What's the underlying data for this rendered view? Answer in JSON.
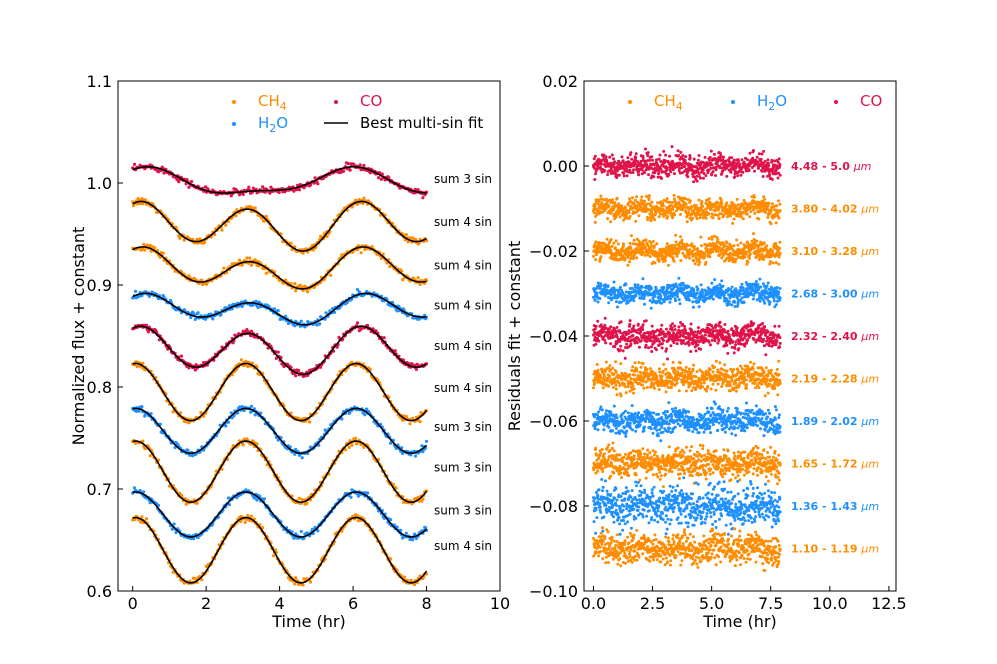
{
  "colors": {
    "ch4": "#ff8c00",
    "h2o": "#1e90ff",
    "co": "#e0134a",
    "fit": "#000000"
  },
  "chart_data": [
    {
      "type": "scatter",
      "title": "",
      "xlabel": "Time (hr)",
      "ylabel": "Normalized flux + constant",
      "xlim": [
        -0.4,
        10
      ],
      "ylim": [
        0.6,
        1.1
      ],
      "xticks": [
        0,
        2,
        4,
        6,
        8,
        10
      ],
      "yticks": [
        0.6,
        0.7,
        0.8,
        0.9,
        1.0,
        1.1
      ],
      "xtick_labels": [
        "0",
        "2",
        "4",
        "6",
        "8",
        "10"
      ],
      "ytick_labels": [
        "0.6",
        "0.7",
        "0.8",
        "0.9",
        "1.0",
        "1.1"
      ],
      "legend": {
        "placement": "top",
        "entries": [
          {
            "label": "CH",
            "sub": "4",
            "kind": "ch4"
          },
          {
            "label": "CO",
            "sub": "",
            "kind": "co"
          },
          {
            "label": "H",
            "sub": "2",
            "tail": "O",
            "kind": "h2o"
          },
          {
            "label": "Best multi-sin fit",
            "sub": "",
            "kind": "fit"
          }
        ]
      },
      "series": [
        {
          "kind": "co",
          "offset": 1.0,
          "label": "sum 3 sin",
          "terms": [
            [
              0.012,
              5.6,
              1.2
            ],
            [
              0.004,
              2.8,
              0.5
            ]
          ]
        },
        {
          "kind": "ch4",
          "offset": 0.958,
          "label": "sum 4 sin",
          "terms": [
            [
              0.02,
              3.0,
              1.2
            ],
            [
              0.006,
              6.0,
              0.5
            ]
          ]
        },
        {
          "kind": "ch4",
          "offset": 0.915,
          "label": "sum 4 sin",
          "terms": [
            [
              0.015,
              3.0,
              1.1
            ],
            [
              0.008,
              6.0,
              0.9
            ]
          ]
        },
        {
          "kind": "h2o",
          "offset": 0.876,
          "label": "sum 4 sin",
          "terms": [
            [
              0.011,
              3.0,
              1.0
            ],
            [
              0.006,
              6.0,
              0.6
            ]
          ]
        },
        {
          "kind": "co",
          "offset": 0.836,
          "label": "sum 4 sin",
          "terms": [
            [
              0.02,
              3.0,
              1.2
            ],
            [
              0.005,
              6.0,
              0.6
            ]
          ]
        },
        {
          "kind": "ch4",
          "offset": 0.795,
          "label": "sum 4 sin",
          "terms": [
            [
              0.028,
              3.0,
              1.4
            ]
          ]
        },
        {
          "kind": "h2o",
          "offset": 0.757,
          "label": "sum 3 sin",
          "terms": [
            [
              0.022,
              3.0,
              1.4
            ]
          ]
        },
        {
          "kind": "ch4",
          "offset": 0.717,
          "label": "sum 3 sin",
          "terms": [
            [
              0.03,
              3.0,
              1.4
            ]
          ]
        },
        {
          "kind": "h2o",
          "offset": 0.675,
          "label": "sum 3 sin",
          "terms": [
            [
              0.022,
              3.0,
              1.4
            ]
          ]
        },
        {
          "kind": "ch4",
          "offset": 0.64,
          "label": "sum 4 sin",
          "terms": [
            [
              0.032,
              3.0,
              1.4
            ]
          ]
        }
      ]
    },
    {
      "type": "scatter",
      "title": "",
      "xlabel": "Time (hr)",
      "ylabel": "Residuals fit + constant",
      "xlim": [
        -0.4,
        12.8
      ],
      "ylim": [
        -0.1,
        0.02
      ],
      "xticks": [
        0,
        2.5,
        5,
        7.5,
        10,
        12.5
      ],
      "yticks": [
        -0.1,
        -0.08,
        -0.06,
        -0.04,
        -0.02,
        0.0,
        0.02
      ],
      "xtick_labels": [
        "0.0",
        "2.5",
        "5.0",
        "7.5",
        "10.0",
        "12.5"
      ],
      "ytick_labels": [
        "−0.10",
        "−0.08",
        "−0.06",
        "−0.04",
        "−0.02",
        "0.00",
        "0.02"
      ],
      "legend": {
        "placement": "top",
        "entries": [
          {
            "label": "CH",
            "sub": "4",
            "kind": "ch4"
          },
          {
            "label": "H",
            "sub": "2",
            "tail": "O",
            "kind": "h2o"
          },
          {
            "label": "CO",
            "sub": "",
            "kind": "co"
          }
        ]
      },
      "series": [
        {
          "kind": "co",
          "offset": 0.0,
          "label": "4.48 - 5.0",
          "unit": "μm",
          "scatter": 0.0012
        },
        {
          "kind": "ch4",
          "offset": -0.01,
          "label": "3.80 - 4.02",
          "unit": "μm",
          "scatter": 0.0012
        },
        {
          "kind": "ch4",
          "offset": -0.02,
          "label": "3.10 - 3.28",
          "unit": "μm",
          "scatter": 0.0012
        },
        {
          "kind": "h2o",
          "offset": -0.03,
          "label": "2.68 - 3.00",
          "unit": "μm",
          "scatter": 0.0011
        },
        {
          "kind": "co",
          "offset": -0.04,
          "label": "2.32 - 2.40",
          "unit": "μm",
          "scatter": 0.0014
        },
        {
          "kind": "ch4",
          "offset": -0.05,
          "label": "2.19 - 2.28",
          "unit": "μm",
          "scatter": 0.0014
        },
        {
          "kind": "h2o",
          "offset": -0.06,
          "label": "1.89 - 2.02",
          "unit": "μm",
          "scatter": 0.0014
        },
        {
          "kind": "ch4",
          "offset": -0.07,
          "label": "1.65 - 1.72",
          "unit": "μm",
          "scatter": 0.0018
        },
        {
          "kind": "h2o",
          "offset": -0.08,
          "label": "1.36 - 1.43",
          "unit": "μm",
          "scatter": 0.0022
        },
        {
          "kind": "ch4",
          "offset": -0.09,
          "label": "1.10 - 1.19",
          "unit": "μm",
          "scatter": 0.0018
        }
      ]
    }
  ]
}
